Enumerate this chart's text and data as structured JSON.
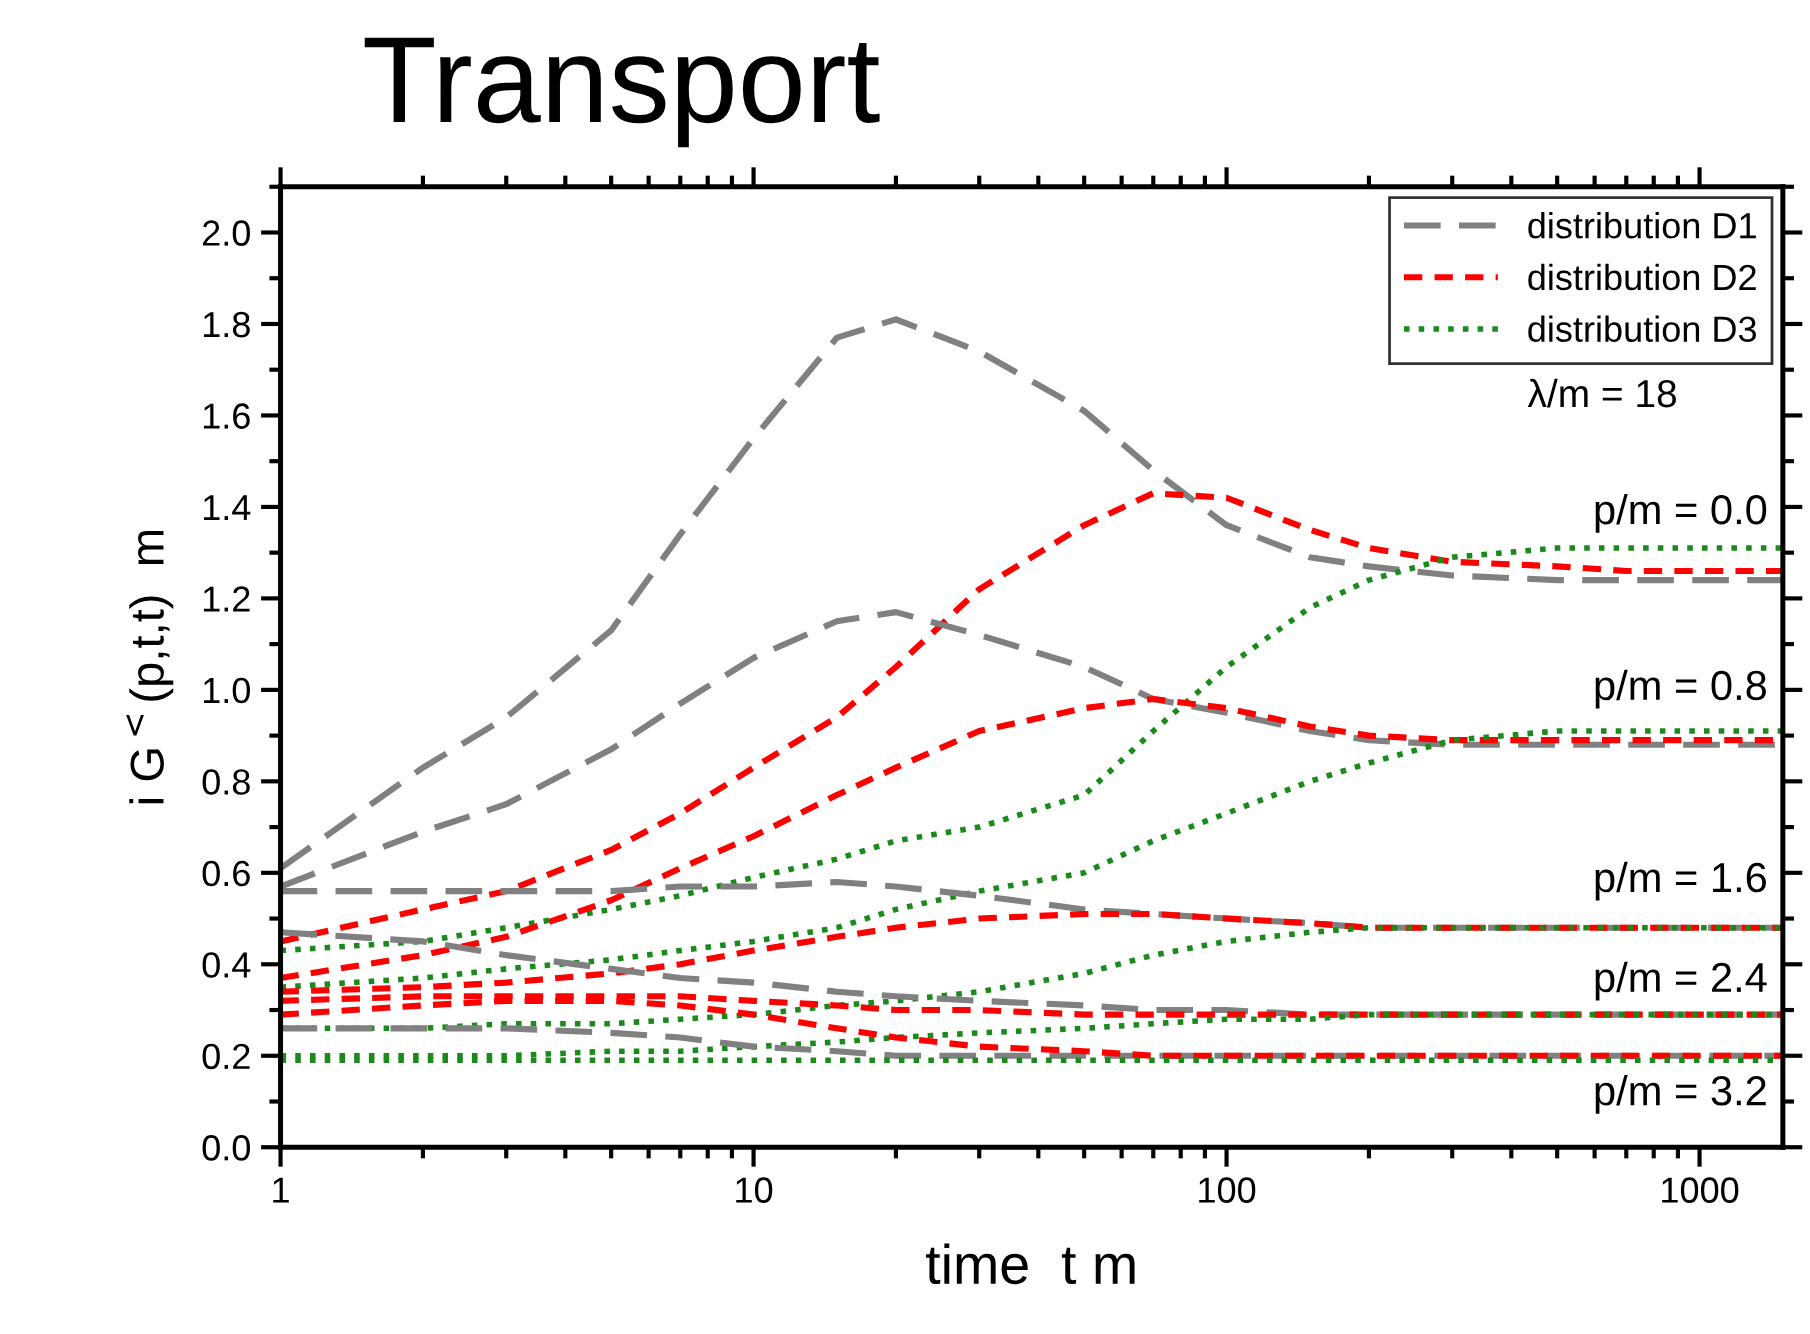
{
  "chart_data": {
    "type": "line",
    "title": "Transport",
    "xlabel": "time  t m",
    "ylabel": "i G$^{<}$(p,t,t)  m",
    "x": [
      1,
      2,
      3,
      5,
      7,
      10,
      15,
      20,
      30,
      50,
      70,
      100,
      150,
      200,
      300,
      500,
      700,
      1000,
      1500
    ],
    "log": "x",
    "xlim": [
      1,
      1500
    ],
    "xticks": [
      1,
      10,
      100,
      1000
    ],
    "ylim": [
      0,
      2.1
    ],
    "yticks": [
      {
        "value": 0,
        "label": "0.0"
      },
      0.2,
      0.4,
      0.6,
      0.8,
      {
        "value": 1,
        "label": "1.0"
      },
      1.2,
      1.4,
      1.6,
      1.8,
      {
        "value": 2,
        "label": "2.0"
      }
    ],
    "grid": false,
    "legend": "top right",
    "marker": "none",
    "series": [
      {
        "name": "distribution D1",
        "color": "#808080",
        "line_style": "dashed",
        "values": [
          0.61,
          0.83,
          0.94,
          1.13,
          1.34,
          1.55,
          1.77,
          1.81,
          1.74,
          1.61,
          1.48,
          1.36,
          1.29,
          1.27,
          1.25,
          1.24,
          1.24,
          1.24,
          1.24
        ]
      },
      {
        "name": "distribution D2",
        "color": "#ff0000",
        "line_style": "dashed",
        "values": [
          0.45,
          0.52,
          0.56,
          0.65,
          0.73,
          0.83,
          0.94,
          1.05,
          1.22,
          1.36,
          1.43,
          1.42,
          1.35,
          1.31,
          1.28,
          1.27,
          1.26,
          1.26,
          1.26
        ]
      },
      {
        "name": "distribution D3",
        "color": "#1a8a1a",
        "line_style": "dotted",
        "values": [
          0.43,
          0.45,
          0.48,
          0.52,
          0.55,
          0.59,
          0.63,
          0.67,
          0.7,
          0.77,
          0.91,
          1.05,
          1.18,
          1.24,
          1.29,
          1.31,
          1.31,
          1.31,
          1.31
        ]
      },
      {
        "color": "#808080",
        "line_style": "dashed",
        "values": [
          0.57,
          0.69,
          0.75,
          0.87,
          0.97,
          1.07,
          1.15,
          1.17,
          1.12,
          1.05,
          0.98,
          0.95,
          0.91,
          0.89,
          0.88,
          0.88,
          0.88,
          0.88,
          0.88
        ]
      },
      {
        "color": "#ff0000",
        "line_style": "dashed",
        "values": [
          0.37,
          0.42,
          0.46,
          0.54,
          0.61,
          0.68,
          0.77,
          0.83,
          0.91,
          0.96,
          0.98,
          0.96,
          0.92,
          0.9,
          0.89,
          0.89,
          0.89,
          0.89,
          0.89
        ]
      },
      {
        "color": "#1a8a1a",
        "line_style": "dotted",
        "values": [
          0.35,
          0.37,
          0.39,
          0.41,
          0.43,
          0.45,
          0.48,
          0.52,
          0.56,
          0.6,
          0.67,
          0.73,
          0.8,
          0.84,
          0.89,
          0.91,
          0.91,
          0.91,
          0.91
        ]
      },
      {
        "color": "#808080",
        "line_style": "dashed",
        "values": [
          0.56,
          0.56,
          0.56,
          0.56,
          0.57,
          0.57,
          0.58,
          0.57,
          0.55,
          0.52,
          0.51,
          0.5,
          0.49,
          0.48,
          0.48,
          0.48,
          0.48,
          0.48,
          0.48
        ]
      },
      {
        "color": "#ff0000",
        "line_style": "dashed",
        "values": [
          0.34,
          0.35,
          0.36,
          0.38,
          0.4,
          0.43,
          0.46,
          0.48,
          0.5,
          0.51,
          0.51,
          0.5,
          0.49,
          0.48,
          0.48,
          0.48,
          0.48,
          0.48,
          0.48
        ]
      },
      {
        "color": "#1a8a1a",
        "line_style": "dotted",
        "values": [
          0.26,
          0.26,
          0.27,
          0.27,
          0.28,
          0.29,
          0.31,
          0.32,
          0.34,
          0.38,
          0.42,
          0.45,
          0.47,
          0.48,
          0.48,
          0.48,
          0.48,
          0.48,
          0.48
        ]
      },
      {
        "color": "#808080",
        "line_style": "dashed",
        "values": [
          0.47,
          0.45,
          0.42,
          0.39,
          0.37,
          0.36,
          0.34,
          0.33,
          0.32,
          0.31,
          0.3,
          0.3,
          0.29,
          0.29,
          0.29,
          0.29,
          0.29,
          0.29,
          0.29
        ]
      },
      {
        "color": "#ff0000",
        "line_style": "dashed",
        "values": [
          0.32,
          0.33,
          0.33,
          0.33,
          0.33,
          0.32,
          0.31,
          0.3,
          0.3,
          0.29,
          0.29,
          0.29,
          0.29,
          0.29,
          0.29,
          0.29,
          0.29,
          0.29,
          0.29
        ]
      },
      {
        "color": "#1a8a1a",
        "line_style": "dotted",
        "values": [
          0.2,
          0.2,
          0.2,
          0.21,
          0.21,
          0.22,
          0.23,
          0.24,
          0.25,
          0.26,
          0.27,
          0.28,
          0.28,
          0.29,
          0.29,
          0.29,
          0.29,
          0.29,
          0.29
        ]
      },
      {
        "color": "#808080",
        "line_style": "dashed",
        "values": [
          0.26,
          0.26,
          0.26,
          0.25,
          0.24,
          0.22,
          0.21,
          0.2,
          0.2,
          0.2,
          0.2,
          0.2,
          0.2,
          0.2,
          0.2,
          0.2,
          0.2,
          0.2,
          0.2
        ]
      },
      {
        "color": "#ff0000",
        "line_style": "dashed",
        "values": [
          0.29,
          0.31,
          0.32,
          0.32,
          0.31,
          0.29,
          0.26,
          0.24,
          0.22,
          0.21,
          0.2,
          0.2,
          0.2,
          0.2,
          0.2,
          0.2,
          0.2,
          0.2,
          0.2
        ]
      },
      {
        "color": "#1a8a1a",
        "line_style": "dotted",
        "values": [
          0.19,
          0.19,
          0.19,
          0.19,
          0.19,
          0.19,
          0.19,
          0.19,
          0.19,
          0.19,
          0.19,
          0.19,
          0.19,
          0.19,
          0.19,
          0.19,
          0.19,
          0.19,
          0.19
        ]
      }
    ],
    "annotations": [
      "λ/m = 18",
      "p/m = 0.0",
      "p/m = 0.8",
      "p/m = 1.6",
      "p/m = 2.4",
      "p/m = 3.2"
    ]
  }
}
